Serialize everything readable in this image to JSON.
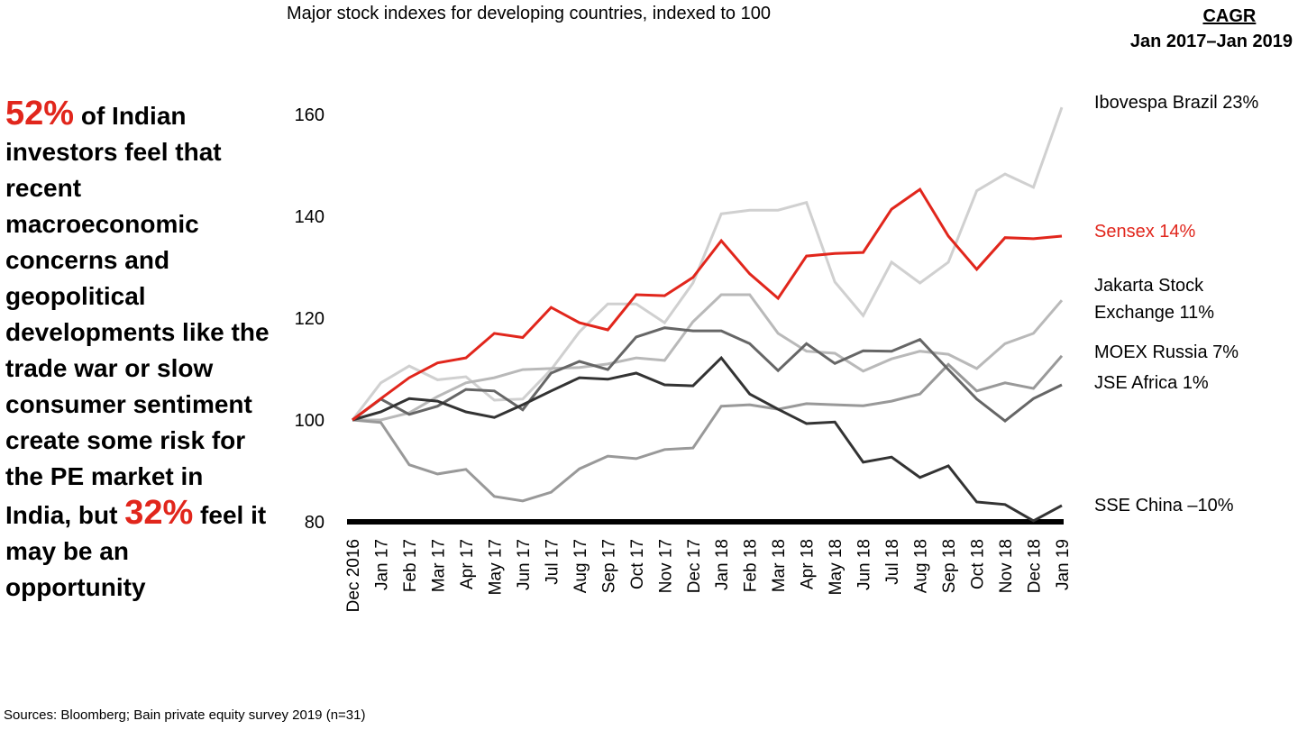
{
  "headline": {
    "pct1": "52%",
    "text1": " of Indian investors feel that recent macroeconomic concerns and geopolitical developments like the trade war or slow consumer sentiment create some risk for the PE market in India, but ",
    "pct2": "32%",
    "text2": " feel it may be an opportunity"
  },
  "source": "Sources: Bloomberg; Bain private equity survey 2019 (n=31)",
  "cagr_header": {
    "title": "CAGR",
    "range": "Jan 2017–Jan 2019"
  },
  "chart_data": {
    "type": "line",
    "title": "Major stock indexes for developing countries, indexed to 100",
    "xlabel": "",
    "ylabel": "",
    "ylim": [
      80,
      165
    ],
    "yticks": [
      80,
      100,
      120,
      140,
      160
    ],
    "grid": false,
    "legend": "right (end-of-line labels)",
    "x": [
      "Dec 2016",
      "Jan 17",
      "Feb 17",
      "Mar 17",
      "Apr 17",
      "May 17",
      "Jun 17",
      "Jul 17",
      "Aug 17",
      "Sep 17",
      "Oct 17",
      "Nov 17",
      "Dec 17",
      "Jan 18",
      "Feb 18",
      "Mar 18",
      "Apr 18",
      "May 18",
      "Jun 18",
      "Jul 18",
      "Aug 18",
      "Sep 18",
      "Oct 18",
      "Nov 18",
      "Dec 18",
      "Jan 19"
    ],
    "series": [
      {
        "name": "Ibovespa Brazil",
        "label": "Ibovespa Brazil 23%",
        "cagr": "23%",
        "color": "#d0d0d0",
        "values": [
          100,
          107.3,
          110.6,
          107.9,
          108.5,
          103.9,
          104.1,
          109.9,
          117.3,
          122.8,
          122.8,
          119.1,
          126.9,
          140.5,
          141.2,
          141.2,
          142.7,
          127.1,
          120.5,
          131.0,
          126.9,
          131.0,
          145.0,
          148.3,
          145.7,
          161.4
        ]
      },
      {
        "name": "Sensex",
        "label": "Sensex 14%",
        "cagr": "14%",
        "color": "#e1261c",
        "values": [
          100,
          104.2,
          108.3,
          111.2,
          112.2,
          117.0,
          116.2,
          122.1,
          119.1,
          117.7,
          124.6,
          124.4,
          128.0,
          135.2,
          128.7,
          123.9,
          132.2,
          132.7,
          132.9,
          141.4,
          145.3,
          136.1,
          129.6,
          135.8,
          135.6,
          136.1
        ]
      },
      {
        "name": "Jakarta Stock Exchange",
        "label": "Jakarta Stock|Exchange 11%",
        "cagr": "11%",
        "color": "#b9b9b9",
        "values": [
          100,
          100,
          101.4,
          104.6,
          107.3,
          108.3,
          109.9,
          110.1,
          110.3,
          111.0,
          112.2,
          111.7,
          119.3,
          124.6,
          124.6,
          117.0,
          113.5,
          113.1,
          109.6,
          112.0,
          113.5,
          112.9,
          110.1,
          115.0,
          117.0,
          123.5
        ]
      },
      {
        "name": "MOEX Russia",
        "label": "MOEX Russia 7%",
        "cagr": "7%",
        "color": "#999999",
        "values": [
          100,
          99.5,
          91.2,
          89.4,
          90.3,
          85.0,
          84.1,
          85.8,
          90.4,
          92.9,
          92.4,
          94.2,
          94.5,
          102.7,
          103.0,
          102.1,
          103.2,
          103.0,
          102.8,
          103.7,
          105.1,
          110.9,
          105.7,
          107.3,
          106.2,
          112.6
        ]
      },
      {
        "name": "JSE Africa",
        "label": "JSE Africa 1%",
        "cagr": "1%",
        "color": "#666666",
        "values": [
          100,
          104.1,
          101.1,
          102.7,
          106.0,
          105.7,
          102.0,
          109.2,
          111.5,
          109.9,
          116.3,
          118.1,
          117.5,
          117.5,
          115.0,
          109.7,
          115.0,
          111.1,
          113.6,
          113.5,
          115.8,
          109.9,
          104.1,
          99.8,
          104.2,
          106.9
        ]
      },
      {
        "name": "SSE China",
        "label": "SSE China –10%",
        "cagr": "–10%",
        "color": "#333333",
        "values": [
          100,
          101.6,
          104.2,
          103.7,
          101.6,
          100.5,
          103.0,
          105.7,
          108.3,
          108.0,
          109.2,
          106.9,
          106.7,
          112.2,
          105.1,
          102.1,
          99.3,
          99.6,
          91.7,
          92.7,
          88.7,
          91.0,
          83.9,
          83.4,
          80.2,
          83.2
        ]
      }
    ]
  }
}
